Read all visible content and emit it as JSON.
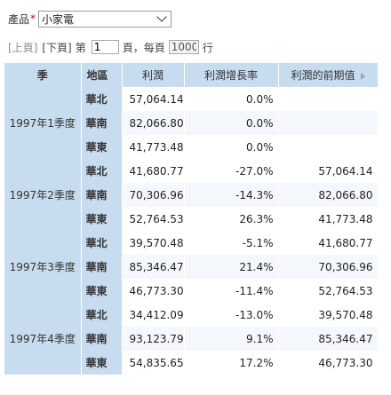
{
  "filter": {
    "label": "產品",
    "required_mark": "*",
    "selected": "小家電"
  },
  "pager": {
    "prev": "[上頁]",
    "next": "[下頁]",
    "page_prefix": "第",
    "page_value": "1",
    "page_suffix": "頁，每頁",
    "rows_value": "1000",
    "rows_suffix": "行"
  },
  "table": {
    "headers": {
      "season": "季",
      "region": "地區",
      "profit": "利潤",
      "growth": "利潤增長率",
      "prev_profit": "利潤的前期值"
    },
    "groups": [
      {
        "season": "1997年1季度",
        "rows": [
          {
            "region": "華北",
            "profit": "57,064.14",
            "growth": "0.0%",
            "prev": ""
          },
          {
            "region": "華南",
            "profit": "82,066.80",
            "growth": "0.0%",
            "prev": ""
          },
          {
            "region": "華東",
            "profit": "41,773.48",
            "growth": "0.0%",
            "prev": ""
          }
        ]
      },
      {
        "season": "1997年2季度",
        "rows": [
          {
            "region": "華北",
            "profit": "41,680.77",
            "growth": "-27.0%",
            "prev": "57,064.14"
          },
          {
            "region": "華南",
            "profit": "70,306.96",
            "growth": "-14.3%",
            "prev": "82,066.80"
          },
          {
            "region": "華東",
            "profit": "52,764.53",
            "growth": "26.3%",
            "prev": "41,773.48"
          }
        ]
      },
      {
        "season": "1997年3季度",
        "rows": [
          {
            "region": "華北",
            "profit": "39,570.48",
            "growth": "-5.1%",
            "prev": "41,680.77"
          },
          {
            "region": "華南",
            "profit": "85,346.47",
            "growth": "21.4%",
            "prev": "70,306.96"
          },
          {
            "region": "華東",
            "profit": "46,773.30",
            "growth": "-11.4%",
            "prev": "52,764.53"
          }
        ]
      },
      {
        "season": "1997年4季度",
        "rows": [
          {
            "region": "華北",
            "profit": "34,412.09",
            "growth": "-13.0%",
            "prev": "39,570.48"
          },
          {
            "region": "華南",
            "profit": "93,123.79",
            "growth": "9.1%",
            "prev": "85,346.47"
          },
          {
            "region": "華東",
            "profit": "54,835.65",
            "growth": "17.2%",
            "prev": "46,773.30"
          }
        ]
      }
    ]
  }
}
